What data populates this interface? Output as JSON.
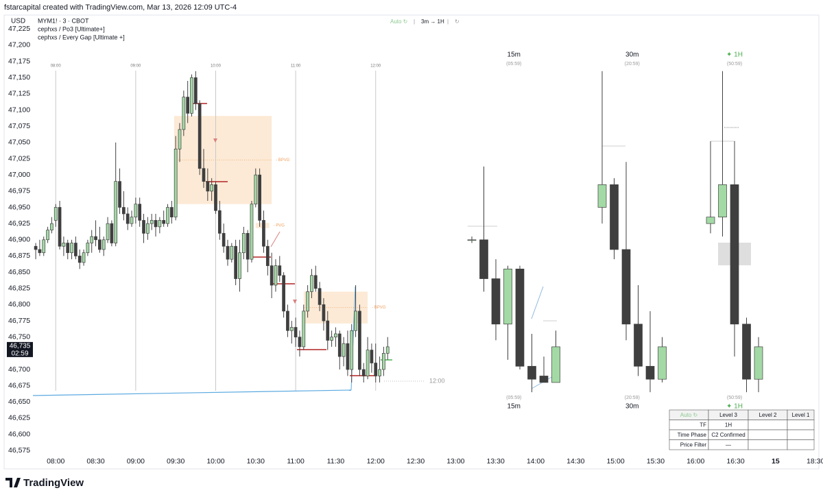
{
  "header": {
    "credit": "fstarcapital created with TradingView.com, Mar 13, 2026 12:09 UTC-4",
    "currency": "USD",
    "symbol": "MYM1! · 3 · CBOT",
    "indicators": [
      "cephxs / Po3 [Ultimate+]",
      "cephxs / Every Gap [Ultimate +]"
    ],
    "toolbar": [
      "Auto ↻",
      "3m → 1H",
      "↻"
    ]
  },
  "footer": {
    "brand": "TradingView"
  },
  "chart_data": {
    "type": "candlestick",
    "up_color": "#a3d9a5",
    "down_color": "#3f3f3f",
    "grid": false,
    "ylim": [
      46570,
      47238
    ],
    "xlim": [
      -0.7,
      196
    ],
    "yticks": [
      {
        "value": 46575,
        "label": "46,575"
      },
      {
        "value": 46600,
        "label": "46,600"
      },
      {
        "value": 46625,
        "label": "46,625"
      },
      {
        "value": 46650,
        "label": "46,650"
      },
      {
        "value": 46675,
        "label": "46,675"
      },
      {
        "value": 46700,
        "label": "46,700"
      },
      {
        "value": 46725,
        "label": "46,725"
      },
      {
        "value": 46750,
        "label": "46,750"
      },
      {
        "value": 46775,
        "label": "46,775"
      },
      {
        "value": 46800,
        "label": "46,800"
      },
      {
        "value": 46825,
        "label": "46,825"
      },
      {
        "value": 46850,
        "label": "46,850"
      },
      {
        "value": 46875,
        "label": "46,875"
      },
      {
        "value": 46900,
        "label": "46,900"
      },
      {
        "value": 46925,
        "label": "46,925"
      },
      {
        "value": 46950,
        "label": "46,950"
      },
      {
        "value": 46975,
        "label": "46,975"
      },
      {
        "value": 47000,
        "label": "47,000"
      },
      {
        "value": 47025,
        "label": "47,025"
      },
      {
        "value": 47050,
        "label": "47,050"
      },
      {
        "value": 47075,
        "label": "47,075"
      },
      {
        "value": 47100,
        "label": "47,100"
      },
      {
        "value": 47125,
        "label": "47,125"
      },
      {
        "value": 47150,
        "label": "47,150"
      },
      {
        "value": 47175,
        "label": "47,175"
      },
      {
        "value": 47200,
        "label": "47,200"
      },
      {
        "value": 47225,
        "label": "47,225"
      }
    ],
    "xticks": [
      {
        "value": 5,
        "label": "08:00"
      },
      {
        "value": 15,
        "label": "08:30"
      },
      {
        "value": 25,
        "label": "09:00"
      },
      {
        "value": 35,
        "label": "09:30"
      },
      {
        "value": 45,
        "label": "10:00"
      },
      {
        "value": 55,
        "label": "10:30"
      },
      {
        "value": 65,
        "label": "11:00"
      },
      {
        "value": 75,
        "label": "11:30"
      },
      {
        "value": 85,
        "label": "12:00"
      },
      {
        "value": 95,
        "label": "12:30"
      },
      {
        "value": 105,
        "label": "13:00"
      },
      {
        "value": 115,
        "label": "13:30"
      },
      {
        "value": 125,
        "label": "14:00"
      },
      {
        "value": 135,
        "label": "14:30"
      },
      {
        "value": 145,
        "label": "15:00"
      },
      {
        "value": 155,
        "label": "15:30"
      },
      {
        "value": 165,
        "label": "16:00"
      },
      {
        "value": 175,
        "label": "16:30"
      },
      {
        "value": 185,
        "label": "15"
      },
      {
        "value": 195,
        "label": "18:30"
      }
    ],
    "session_lines": [
      {
        "value": 5,
        "label": "08:00"
      },
      {
        "value": 25,
        "label": "09:00"
      },
      {
        "value": 45,
        "label": "10:00"
      },
      {
        "value": 65,
        "label": "11:00"
      },
      {
        "value": 85,
        "label": "12:00"
      }
    ],
    "last_price": {
      "value": 46735,
      "label": "46,735",
      "countdown": "02:59"
    },
    "end_label": "12:00",
    "open": [
      46890,
      46885,
      46880,
      46900,
      46915,
      46930,
      46950,
      46890,
      46895,
      46880,
      46895,
      46875,
      46865,
      46880,
      46895,
      46905,
      46900,
      46885,
      46900,
      46925,
      46895,
      46990,
      46950,
      46940,
      46925,
      46935,
      46955,
      46930,
      46910,
      46925,
      46930,
      46920,
      46930,
      46925,
      46950,
      46935,
      47040,
      47070,
      47120,
      47095,
      47150,
      47110,
      47010,
      46990,
      46975,
      46985,
      46945,
      46910,
      46890,
      46870,
      46890,
      46840,
      46880,
      46910,
      46870,
      46955,
      47000,
      46930,
      46890,
      46860,
      46830,
      46860,
      46845,
      46790,
      46760,
      46765,
      46750,
      46735,
      46790,
      46820,
      46845,
      46825,
      46800,
      46775,
      46745,
      46750,
      46755,
      46720,
      46740,
      46700,
      46760,
      46790,
      46700,
      46690,
      46730,
      46710,
      46690,
      46700,
      46725
    ],
    "high": [
      46895,
      46900,
      46905,
      46920,
      46935,
      46955,
      46960,
      46905,
      46900,
      46900,
      46905,
      46885,
      46885,
      46900,
      46915,
      46930,
      46920,
      46905,
      46935,
      46930,
      47050,
      47010,
      46975,
      46950,
      46945,
      46965,
      46965,
      46940,
      46935,
      46940,
      46940,
      46935,
      46945,
      46955,
      46960,
      47060,
      47080,
      47130,
      47145,
      47155,
      47160,
      47115,
      47040,
      47010,
      46995,
      46990,
      46960,
      46925,
      46900,
      46895,
      46900,
      46900,
      46920,
      46915,
      46960,
      47010,
      47010,
      46945,
      46900,
      46880,
      46870,
      46875,
      46850,
      46800,
      46775,
      46780,
      46760,
      46800,
      46830,
      46855,
      46860,
      46835,
      46810,
      46790,
      46760,
      46765,
      46760,
      46750,
      46760,
      46770,
      46830,
      46800,
      46710,
      46750,
      46740,
      46740,
      46720,
      46735,
      46750
    ],
    "low": [
      46870,
      46875,
      46875,
      46895,
      46910,
      46920,
      46885,
      46875,
      46870,
      46870,
      46870,
      46855,
      46860,
      46875,
      46880,
      46890,
      46880,
      46875,
      46895,
      46890,
      46890,
      46940,
      46930,
      46915,
      46920,
      46925,
      46920,
      46895,
      46900,
      46915,
      46905,
      46910,
      46920,
      46920,
      46925,
      46930,
      47020,
      47060,
      47080,
      47090,
      47100,
      47000,
      46980,
      46960,
      46960,
      46940,
      46900,
      46880,
      46860,
      46865,
      46830,
      46820,
      46870,
      46850,
      46865,
      46950,
      46920,
      46880,
      46845,
      46810,
      46820,
      46835,
      46780,
      46750,
      46740,
      46735,
      46720,
      46730,
      46780,
      46810,
      46820,
      46790,
      46760,
      46730,
      46735,
      46735,
      46700,
      46705,
      46690,
      46680,
      46750,
      46690,
      46680,
      46685,
      46695,
      46680,
      46680,
      46690,
      46715
    ],
    "close": [
      46885,
      46880,
      46900,
      46915,
      46925,
      46950,
      46890,
      46895,
      46880,
      46895,
      46875,
      46865,
      46880,
      46895,
      46905,
      46900,
      46885,
      46900,
      46925,
      46895,
      46990,
      46950,
      46940,
      46925,
      46935,
      46955,
      46930,
      46910,
      46925,
      46930,
      46920,
      46930,
      46925,
      46950,
      46935,
      47040,
      47070,
      47120,
      47095,
      47150,
      47110,
      47010,
      46990,
      46975,
      46985,
      46945,
      46910,
      46890,
      46870,
      46890,
      46840,
      46880,
      46910,
      46870,
      46955,
      47000,
      46930,
      46890,
      46860,
      46830,
      46860,
      46845,
      46790,
      46760,
      46765,
      46750,
      46735,
      46790,
      46820,
      46845,
      46825,
      46800,
      46775,
      46745,
      46750,
      46755,
      46720,
      46740,
      46700,
      46760,
      46790,
      46700,
      46690,
      46730,
      46710,
      46690,
      46700,
      46725,
      46735
    ],
    "zones": [
      {
        "x": [
          34.6,
          59
        ],
        "top": 47091,
        "bottom": 46955,
        "label": "- BPVG"
      },
      {
        "x": [
          55,
          58.4
        ],
        "top": 46926,
        "bottom": 46918,
        "label": "- PVG"
      },
      {
        "x": [
          67,
          83
        ],
        "top": 46820,
        "bottom": 46771,
        "label": "- BPVG"
      }
    ],
    "htf_panels": [
      {
        "label": "15m",
        "timer": "(05:59)",
        "open": [
          46900,
          46900,
          46840,
          46770,
          46855,
          46705,
          46690,
          46680
        ],
        "high": [
          46905,
          47013,
          46870,
          46860,
          46860,
          46755,
          46720,
          46760
        ],
        "low": [
          46895,
          46820,
          46745,
          46715,
          46700,
          46665,
          46680,
          46680
        ],
        "close": [
          46900,
          46840,
          46770,
          46855,
          46705,
          46685,
          46680,
          46735
        ]
      },
      {
        "label": "30m",
        "timer": "(20:59)",
        "open": [
          46950,
          46985,
          46885,
          46770,
          46705,
          46685
        ],
        "high": [
          47160,
          46995,
          47020,
          46830,
          46790,
          46750
        ],
        "low": [
          46925,
          46870,
          46745,
          46690,
          46665,
          46680
        ],
        "close": [
          46985,
          46885,
          46770,
          46705,
          46685,
          46735
        ]
      },
      {
        "label": "✦ 1H",
        "timer": "(50:59)",
        "open": [
          46925,
          46935,
          46985,
          46770,
          46685
        ],
        "high": [
          46945,
          47160,
          46990,
          46780,
          46750
        ],
        "low": [
          46910,
          46905,
          46720,
          46665,
          46665
        ],
        "close": [
          46935,
          46985,
          46770,
          46685,
          46735
        ]
      }
    ]
  },
  "table": {
    "header": [
      "Auto ↻",
      "Level 3",
      "Level 2",
      "Level 1"
    ],
    "rows": [
      [
        "TF",
        "1H"
      ],
      [
        "Time Phase",
        "C2 Confirmed"
      ],
      [
        "Price Filter",
        "—"
      ]
    ]
  }
}
